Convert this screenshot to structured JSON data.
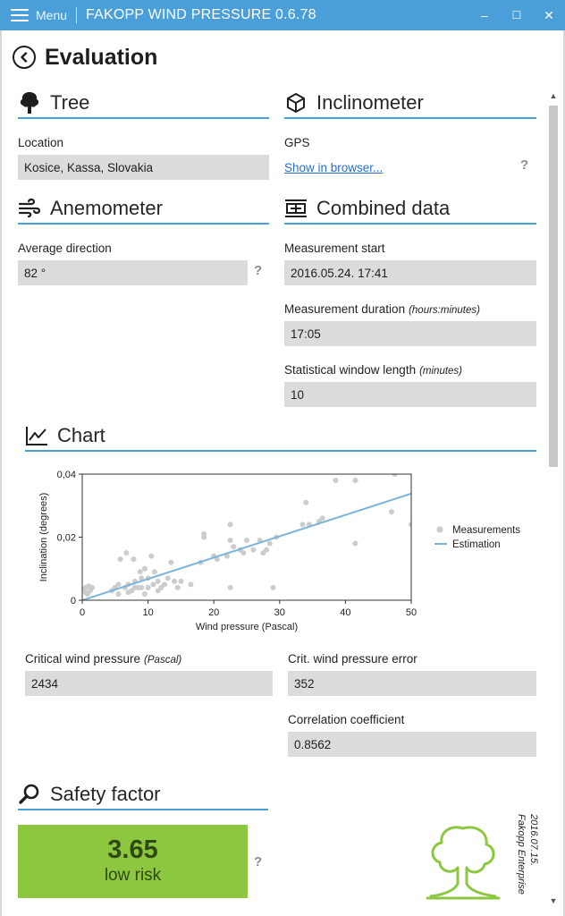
{
  "titlebar": {
    "menu_label": "Menu",
    "app_title": "FAKOPP WIND PRESSURE 0.6.78",
    "minimize": "–",
    "maximize": "☐",
    "close": "✕"
  },
  "page": {
    "title": "Evaluation"
  },
  "tree": {
    "title": "Tree",
    "location_label": "Location",
    "location_value": "Kosice, Kassa, Slovakia"
  },
  "inclinometer": {
    "title": "Inclinometer",
    "gps_label": "GPS",
    "show_link": "Show in browser..."
  },
  "anemometer": {
    "title": "Anemometer",
    "direction_label": "Average direction",
    "direction_value": "82 °"
  },
  "combined": {
    "title": "Combined data",
    "start_label": "Measurement start",
    "start_value": "2016.05.24. 17:41",
    "duration_label": "Measurement duration",
    "duration_unit": "(hours:minutes)",
    "duration_value": "17:05",
    "window_label": "Statistical window length",
    "window_unit": "(minutes)",
    "window_value": "10"
  },
  "chart_section": {
    "title": "Chart"
  },
  "chart_data": {
    "type": "scatter",
    "xlabel": "Wind pressure (Pascal)",
    "ylabel": "Inclination (degrees)",
    "xlim": [
      0,
      50
    ],
    "ylim": [
      0,
      0.04
    ],
    "x_ticks": [
      "0",
      "10",
      "20",
      "30",
      "40",
      "50"
    ],
    "y_ticks": [
      "0",
      "0,02",
      "0,04"
    ],
    "grid": false,
    "legend_position": "right",
    "series": [
      {
        "name": "Measurements",
        "color": "#cccccc",
        "points": [
          [
            0.3,
            0.0035
          ],
          [
            0.5,
            0.004
          ],
          [
            0.5,
            0.0025
          ],
          [
            0.8,
            0.002
          ],
          [
            1.0,
            0.0045
          ],
          [
            1.2,
            0.003
          ],
          [
            1.5,
            0.004
          ],
          [
            4.5,
            0.003
          ],
          [
            5.0,
            0.004
          ],
          [
            5.5,
            0.005
          ],
          [
            5.5,
            0.002
          ],
          [
            5.8,
            0.013
          ],
          [
            6.5,
            0.004
          ],
          [
            6.7,
            0.015
          ],
          [
            7.0,
            0.005
          ],
          [
            7.0,
            0.0025
          ],
          [
            7.5,
            0.003
          ],
          [
            7.8,
            0.013
          ],
          [
            8.0,
            0.006
          ],
          [
            8.0,
            0.004
          ],
          [
            8.5,
            0.004
          ],
          [
            8.8,
            0.009
          ],
          [
            9.0,
            0.007
          ],
          [
            9.0,
            0.004
          ],
          [
            9.5,
            0.01
          ],
          [
            9.5,
            0.002
          ],
          [
            10.0,
            0.004
          ],
          [
            10.0,
            0.007
          ],
          [
            10.5,
            0.014
          ],
          [
            10.8,
            0.005
          ],
          [
            11.0,
            0.009
          ],
          [
            11.5,
            0.003
          ],
          [
            11.5,
            0.006
          ],
          [
            12.0,
            0.004
          ],
          [
            12.5,
            0.005
          ],
          [
            13.0,
            0.007
          ],
          [
            13.5,
            0.012
          ],
          [
            14.0,
            0.006
          ],
          [
            14.5,
            0.004
          ],
          [
            15.0,
            0.006
          ],
          [
            16.5,
            0.005
          ],
          [
            18.0,
            0.012
          ],
          [
            18.5,
            0.02
          ],
          [
            18.5,
            0.021
          ],
          [
            20.0,
            0.014
          ],
          [
            20.5,
            0.013
          ],
          [
            22.0,
            0.014
          ],
          [
            22.5,
            0.019
          ],
          [
            22.5,
            0.024
          ],
          [
            22.5,
            0.004
          ],
          [
            23.0,
            0.017
          ],
          [
            24.0,
            0.016
          ],
          [
            24.5,
            0.015
          ],
          [
            25.0,
            0.019
          ],
          [
            26.0,
            0.016
          ],
          [
            27.0,
            0.019
          ],
          [
            27.5,
            0.015
          ],
          [
            28.0,
            0.016
          ],
          [
            28.5,
            0.018
          ],
          [
            29.0,
            0.004
          ],
          [
            29.5,
            0.02
          ],
          [
            33.5,
            0.024
          ],
          [
            34.0,
            0.031
          ],
          [
            34.5,
            0.024
          ],
          [
            36.0,
            0.025
          ],
          [
            36.5,
            0.026
          ],
          [
            38.5,
            0.038
          ],
          [
            41.5,
            0.038
          ],
          [
            41.5,
            0.018
          ],
          [
            47.0,
            0.028
          ],
          [
            47.5,
            0.04
          ],
          [
            50.0,
            0.024
          ]
        ]
      },
      {
        "name": "Estimation",
        "color": "#7bb4dc",
        "line": [
          [
            0,
            0
          ],
          [
            50,
            0.0338
          ]
        ]
      }
    ]
  },
  "results": {
    "critical_label": "Critical wind pressure",
    "critical_unit": "(Pascal)",
    "critical_value": "2434",
    "error_label": "Crit. wind pressure error",
    "error_value": "352",
    "correlation_label": "Correlation coefficient",
    "correlation_value": "0.8562"
  },
  "safety": {
    "title": "Safety factor",
    "value": "3.65",
    "risk": "low risk",
    "color": "#8dc63f"
  },
  "help_mark": "?",
  "brand": {
    "line1": "Fakopp Enterprise",
    "line2": "2016.07.15."
  },
  "colors": {
    "accent": "#4a9fd8",
    "field_bg": "#dcdcdc",
    "link": "#2b6fc8"
  }
}
